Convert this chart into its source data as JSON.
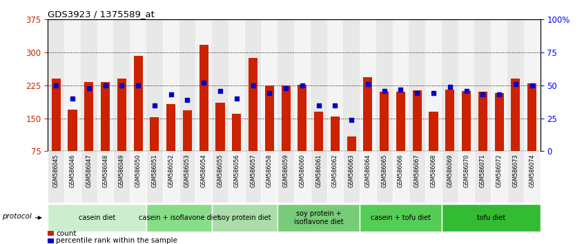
{
  "title": "GDS3923 / 1375589_at",
  "samples": [
    "GSM586045",
    "GSM586046",
    "GSM586047",
    "GSM586048",
    "GSM586049",
    "GSM586050",
    "GSM586051",
    "GSM586052",
    "GSM586053",
    "GSM586054",
    "GSM586055",
    "GSM586056",
    "GSM586057",
    "GSM586058",
    "GSM586059",
    "GSM586060",
    "GSM586061",
    "GSM586062",
    "GSM586063",
    "GSM586064",
    "GSM586065",
    "GSM586066",
    "GSM586067",
    "GSM586068",
    "GSM586069",
    "GSM586070",
    "GSM586071",
    "GSM586072",
    "GSM586073",
    "GSM586074"
  ],
  "counts": [
    240,
    170,
    233,
    233,
    240,
    293,
    152,
    183,
    168,
    318,
    185,
    161,
    288,
    225,
    225,
    226,
    165,
    155,
    108,
    243,
    210,
    210,
    214,
    165,
    215,
    213,
    210,
    208,
    240,
    230
  ],
  "percentile_ranks": [
    50,
    40,
    48,
    50,
    50,
    50,
    35,
    43,
    39,
    52,
    46,
    40,
    50,
    44,
    48,
    50,
    35,
    35,
    24,
    51,
    46,
    47,
    44,
    44,
    49,
    46,
    43,
    43,
    51,
    50
  ],
  "bar_color": "#cc2200",
  "point_color": "#0000cc",
  "y_min": 75,
  "y_max": 375,
  "y_ticks": [
    75,
    150,
    225,
    300,
    375
  ],
  "right_y_ticks": [
    0,
    25,
    50,
    75,
    100
  ],
  "right_y_labels": [
    "0",
    "25",
    "50",
    "75",
    "100%"
  ],
  "groups": [
    {
      "label": "casein diet",
      "start": 0,
      "end": 5,
      "color": "#cceecc"
    },
    {
      "label": "casein + isoflavone diet",
      "start": 6,
      "end": 9,
      "color": "#88dd88"
    },
    {
      "label": "soy protein diet",
      "start": 10,
      "end": 13,
      "color": "#aaddaa"
    },
    {
      "label": "soy protein +\nisoflavone diet",
      "start": 14,
      "end": 18,
      "color": "#77cc77"
    },
    {
      "label": "casein + tofu diet",
      "start": 19,
      "end": 23,
      "color": "#55cc55"
    },
    {
      "label": "tofu diet",
      "start": 24,
      "end": 29,
      "color": "#33bb33"
    }
  ],
  "col_bg_even": "#e8e8e8",
  "col_bg_odd": "#f4f4f4",
  "protocol_label": "protocol",
  "legend_count_label": "count",
  "legend_pct_label": "percentile rank within the sample"
}
